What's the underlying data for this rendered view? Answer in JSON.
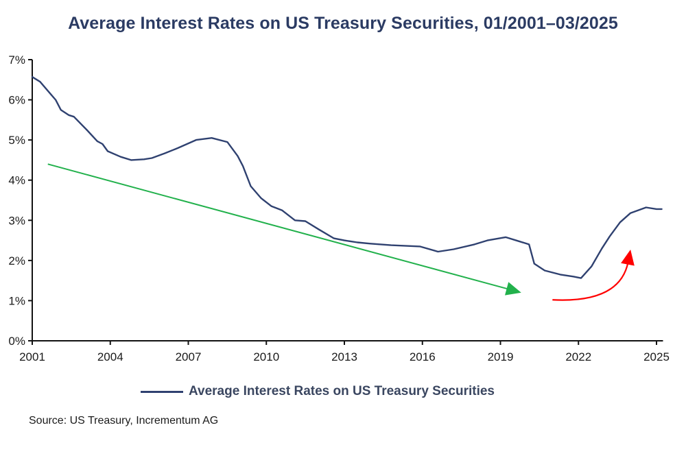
{
  "chart_data": {
    "type": "line",
    "title": "Average Interest Rates on US Treasury Securities, 01/2001–03/2025",
    "xlabel": "",
    "ylabel": "",
    "xlim": [
      2001,
      2025.25
    ],
    "ylim": [
      0,
      7
    ],
    "x_ticks": [
      2001,
      2004,
      2007,
      2010,
      2013,
      2016,
      2019,
      2022,
      2025
    ],
    "x_tick_labels": [
      "2001",
      "2004",
      "2007",
      "2010",
      "2013",
      "2016",
      "2019",
      "2022",
      "2025"
    ],
    "y_ticks": [
      0,
      1,
      2,
      3,
      4,
      5,
      6,
      7
    ],
    "y_tick_labels": [
      "0%",
      "1%",
      "2%",
      "3%",
      "4%",
      "5%",
      "6%",
      "7%"
    ],
    "grid": false,
    "legend_position": "bottom-center",
    "series": [
      {
        "name": "Average Interest Rates on US Treasury Securities",
        "color": "#2f4170",
        "x": [
          2001.0,
          2001.3,
          2001.7,
          2001.9,
          2002.1,
          2002.4,
          2002.6,
          2003.1,
          2003.5,
          2003.7,
          2003.9,
          2004.4,
          2004.8,
          2005.3,
          2005.6,
          2006.1,
          2006.6,
          2007.3,
          2007.9,
          2008.5,
          2008.9,
          2009.1,
          2009.4,
          2009.8,
          2010.2,
          2010.6,
          2011.1,
          2011.5,
          2012.0,
          2012.6,
          2013.0,
          2013.5,
          2014.0,
          2014.8,
          2015.9,
          2016.6,
          2017.2,
          2018.0,
          2018.5,
          2019.2,
          2019.7,
          2020.1,
          2020.3,
          2020.7,
          2021.3,
          2021.8,
          2022.1,
          2022.5,
          2022.9,
          2023.2,
          2023.6,
          2024.0,
          2024.6,
          2025.0,
          2025.2
        ],
        "values": [
          6.57,
          6.45,
          6.15,
          6.0,
          5.75,
          5.62,
          5.58,
          5.25,
          4.97,
          4.9,
          4.72,
          4.58,
          4.5,
          4.52,
          4.55,
          4.67,
          4.8,
          5.0,
          5.05,
          4.95,
          4.6,
          4.35,
          3.85,
          3.55,
          3.35,
          3.25,
          3.0,
          2.98,
          2.78,
          2.55,
          2.5,
          2.45,
          2.42,
          2.38,
          2.35,
          2.22,
          2.28,
          2.4,
          2.5,
          2.58,
          2.48,
          2.4,
          1.92,
          1.75,
          1.65,
          1.6,
          1.56,
          1.85,
          2.3,
          2.6,
          2.95,
          3.18,
          3.32,
          3.28,
          3.28
        ]
      }
    ],
    "annotations": [
      {
        "name": "downtrend-arrow",
        "type": "straight-arrow",
        "color": "#22b14c",
        "from": [
          2001.6,
          4.4
        ],
        "to": [
          2019.8,
          1.2
        ]
      },
      {
        "name": "uptrend-arrow",
        "type": "curved-arrow",
        "color": "#ff0000",
        "from": [
          2021.0,
          1.02
        ],
        "to": [
          2024.0,
          2.27
        ]
      }
    ]
  },
  "legend": {
    "label": "Average Interest Rates on US Treasury Securities"
  },
  "source": "Source: US Treasury,  Incrementum AG"
}
